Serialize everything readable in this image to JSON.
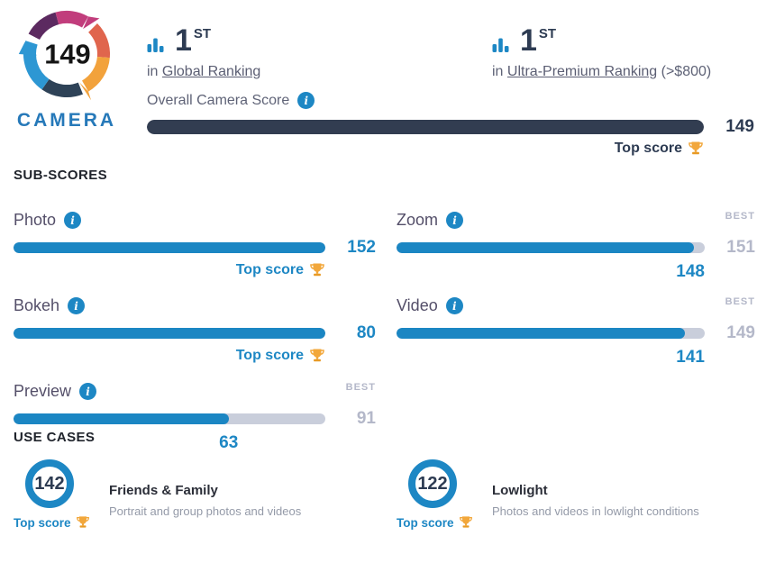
{
  "logo": {
    "score": "149",
    "label": "CAMERA"
  },
  "rankings": [
    {
      "rank": "1",
      "ordinal": "ST",
      "prefix": "in",
      "category": "Global Ranking",
      "note": ""
    },
    {
      "rank": "1",
      "ordinal": "ST",
      "prefix": "in",
      "category": "Ultra-Premium Ranking",
      "note": "(>$800)"
    }
  ],
  "overall": {
    "label": "Overall Camera Score",
    "value": "149",
    "fill_pct": 100,
    "badge": "Top score"
  },
  "subscores": {
    "heading": "SUB-SCORES",
    "left": [
      {
        "label": "Photo",
        "value": "152",
        "fill_pct": 100,
        "badge": "Top score"
      },
      {
        "label": "Bokeh",
        "value": "80",
        "fill_pct": 100,
        "badge": "Top score"
      },
      {
        "label": "Preview",
        "best_label": "BEST",
        "best_value": "91",
        "value": "63",
        "fill_pct": 69,
        "anchor_pct": 69
      }
    ],
    "right": [
      {
        "label": "Zoom",
        "best_label": "BEST",
        "best_value": "151",
        "value": "148",
        "fill_pct": 96.5
      },
      {
        "label": "Video",
        "best_label": "BEST",
        "best_value": "149",
        "value": "141",
        "fill_pct": 93.5
      }
    ]
  },
  "use_cases": {
    "heading": "USE CASES",
    "cards": [
      {
        "score": "142",
        "badge": "Top score",
        "title": "Friends & Family",
        "description": "Portrait and group photos and videos"
      },
      {
        "score": "122",
        "badge": "Top score",
        "title": "Lowlight",
        "description": "Photos and videos in lowlight conditions"
      }
    ]
  },
  "colors": {
    "accent_blue": "#1d87c4",
    "navy": "#2d3b52",
    "overall_bar": "#323d51",
    "track_gray": "#c9cedb",
    "muted_gray": "#b4b8c9",
    "gold": "#f2a73b",
    "logo_magenta": "#c13d7c",
    "logo_purple": "#5c2a60",
    "logo_coral": "#e0654d",
    "logo_amber": "#f2a23c",
    "logo_navy": "#2e4257",
    "logo_sky": "#2d97d3"
  }
}
